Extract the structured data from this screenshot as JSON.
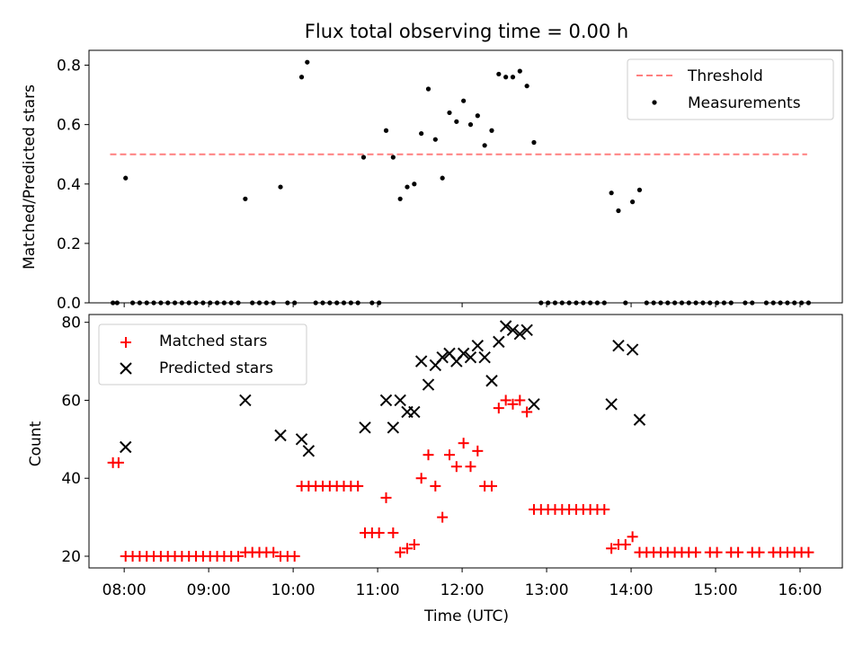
{
  "chart_data": {
    "title": "Flux total observing time = 0.00 h",
    "xlabel": "Time (UTC)",
    "x_ticks": [
      "08:00",
      "09:00",
      "10:00",
      "11:00",
      "12:00",
      "13:00",
      "14:00",
      "15:00",
      "16:00"
    ],
    "x_range": [
      "07:35",
      "16:30"
    ],
    "panels": [
      {
        "type": "scatter",
        "ylabel": "Matched/Predicted stars",
        "ylim": [
          0,
          0.85
        ],
        "y_ticks": [
          "0.0",
          "0.2",
          "0.4",
          "0.6",
          "0.8"
        ],
        "threshold": {
          "name": "Threshold",
          "value": 0.5,
          "x_range": [
            "07:50",
            "16:05"
          ],
          "color": "#ff7f7f",
          "style": "dashed"
        },
        "legend": {
          "position": "upper right",
          "entries": [
            "Threshold",
            "Measurements"
          ]
        },
        "series": [
          {
            "name": "Measurements",
            "color": "#000000",
            "marker": "dot",
            "points": [
              [
                "07:52",
                0
              ],
              [
                "07:55",
                0
              ],
              [
                "08:01",
                0.42
              ],
              [
                "08:06",
                0
              ],
              [
                "08:11",
                0
              ],
              [
                "08:16",
                0
              ],
              [
                "08:21",
                0
              ],
              [
                "08:26",
                0
              ],
              [
                "08:31",
                0
              ],
              [
                "08:36",
                0
              ],
              [
                "08:41",
                0
              ],
              [
                "08:46",
                0
              ],
              [
                "08:51",
                0
              ],
              [
                "08:56",
                0
              ],
              [
                "09:01",
                0
              ],
              [
                "09:06",
                0
              ],
              [
                "09:11",
                0
              ],
              [
                "09:16",
                0
              ],
              [
                "09:21",
                0
              ],
              [
                "09:26",
                0.35
              ],
              [
                "09:31",
                0
              ],
              [
                "09:36",
                0
              ],
              [
                "09:41",
                0
              ],
              [
                "09:46",
                0
              ],
              [
                "09:51",
                0.39
              ],
              [
                "09:56",
                0
              ],
              [
                "10:01",
                0
              ],
              [
                "10:06",
                0.76
              ],
              [
                "10:10",
                0.81
              ],
              [
                "10:16",
                0
              ],
              [
                "10:21",
                0
              ],
              [
                "10:26",
                0
              ],
              [
                "10:31",
                0
              ],
              [
                "10:36",
                0
              ],
              [
                "10:41",
                0
              ],
              [
                "10:46",
                0
              ],
              [
                "10:50",
                0.49
              ],
              [
                "10:56",
                0
              ],
              [
                "11:01",
                0
              ],
              [
                "11:06",
                0.58
              ],
              [
                "11:11",
                0.49
              ],
              [
                "11:16",
                0.35
              ],
              [
                "11:21",
                0.39
              ],
              [
                "11:26",
                0.4
              ],
              [
                "11:31",
                0.57
              ],
              [
                "11:36",
                0.72
              ],
              [
                "11:41",
                0.55
              ],
              [
                "11:46",
                0.42
              ],
              [
                "11:51",
                0.64
              ],
              [
                "11:56",
                0.61
              ],
              [
                "12:01",
                0.68
              ],
              [
                "12:06",
                0.6
              ],
              [
                "12:11",
                0.63
              ],
              [
                "12:16",
                0.53
              ],
              [
                "12:21",
                0.58
              ],
              [
                "12:26",
                0.77
              ],
              [
                "12:31",
                0.76
              ],
              [
                "12:36",
                0.76
              ],
              [
                "12:41",
                0.78
              ],
              [
                "12:46",
                0.73
              ],
              [
                "12:51",
                0.54
              ],
              [
                "12:56",
                0
              ],
              [
                "13:01",
                0
              ],
              [
                "13:06",
                0
              ],
              [
                "13:11",
                0
              ],
              [
                "13:16",
                0
              ],
              [
                "13:21",
                0
              ],
              [
                "13:26",
                0
              ],
              [
                "13:31",
                0
              ],
              [
                "13:36",
                0
              ],
              [
                "13:41",
                0
              ],
              [
                "13:46",
                0.37
              ],
              [
                "13:51",
                0.31
              ],
              [
                "13:56",
                0
              ],
              [
                "14:01",
                0.34
              ],
              [
                "14:06",
                0.38
              ],
              [
                "14:11",
                0
              ],
              [
                "14:16",
                0
              ],
              [
                "14:21",
                0
              ],
              [
                "14:26",
                0
              ],
              [
                "14:31",
                0
              ],
              [
                "14:36",
                0
              ],
              [
                "14:41",
                0
              ],
              [
                "14:46",
                0
              ],
              [
                "14:51",
                0
              ],
              [
                "14:56",
                0
              ],
              [
                "15:01",
                0
              ],
              [
                "15:06",
                0
              ],
              [
                "15:11",
                0
              ],
              [
                "15:21",
                0
              ],
              [
                "15:26",
                0
              ],
              [
                "15:36",
                0
              ],
              [
                "15:41",
                0
              ],
              [
                "15:46",
                0
              ],
              [
                "15:51",
                0
              ],
              [
                "15:56",
                0
              ],
              [
                "16:01",
                0
              ],
              [
                "16:06",
                0
              ]
            ]
          }
        ]
      },
      {
        "type": "scatter",
        "ylabel": "Count",
        "ylim": [
          17,
          82
        ],
        "y_ticks": [
          "20",
          "40",
          "60",
          "80"
        ],
        "legend": {
          "position": "upper left",
          "entries": [
            "Matched stars",
            "Predicted stars"
          ]
        },
        "series": [
          {
            "name": "Matched stars",
            "color": "#ff0000",
            "marker": "plus",
            "points": [
              [
                "07:52",
                44
              ],
              [
                "07:56",
                44
              ],
              [
                "08:01",
                20
              ],
              [
                "08:06",
                20
              ],
              [
                "08:11",
                20
              ],
              [
                "08:16",
                20
              ],
              [
                "08:21",
                20
              ],
              [
                "08:26",
                20
              ],
              [
                "08:31",
                20
              ],
              [
                "08:36",
                20
              ],
              [
                "08:41",
                20
              ],
              [
                "08:46",
                20
              ],
              [
                "08:51",
                20
              ],
              [
                "08:56",
                20
              ],
              [
                "09:01",
                20
              ],
              [
                "09:06",
                20
              ],
              [
                "09:11",
                20
              ],
              [
                "09:16",
                20
              ],
              [
                "09:21",
                20
              ],
              [
                "09:26",
                21
              ],
              [
                "09:31",
                21
              ],
              [
                "09:36",
                21
              ],
              [
                "09:41",
                21
              ],
              [
                "09:46",
                21
              ],
              [
                "09:51",
                20
              ],
              [
                "09:56",
                20
              ],
              [
                "10:01",
                20
              ],
              [
                "10:06",
                38
              ],
              [
                "10:11",
                38
              ],
              [
                "10:16",
                38
              ],
              [
                "10:21",
                38
              ],
              [
                "10:26",
                38
              ],
              [
                "10:31",
                38
              ],
              [
                "10:36",
                38
              ],
              [
                "10:41",
                38
              ],
              [
                "10:46",
                38
              ],
              [
                "10:51",
                26
              ],
              [
                "10:56",
                26
              ],
              [
                "11:01",
                26
              ],
              [
                "11:06",
                35
              ],
              [
                "11:11",
                26
              ],
              [
                "11:16",
                21
              ],
              [
                "11:21",
                22
              ],
              [
                "11:26",
                23
              ],
              [
                "11:31",
                40
              ],
              [
                "11:36",
                46
              ],
              [
                "11:41",
                38
              ],
              [
                "11:46",
                30
              ],
              [
                "11:51",
                46
              ],
              [
                "11:56",
                43
              ],
              [
                "12:01",
                49
              ],
              [
                "12:06",
                43
              ],
              [
                "12:11",
                47
              ],
              [
                "12:16",
                38
              ],
              [
                "12:21",
                38
              ],
              [
                "12:26",
                58
              ],
              [
                "12:31",
                60
              ],
              [
                "12:36",
                59
              ],
              [
                "12:41",
                60
              ],
              [
                "12:46",
                57
              ],
              [
                "12:51",
                32
              ],
              [
                "12:56",
                32
              ],
              [
                "13:01",
                32
              ],
              [
                "13:06",
                32
              ],
              [
                "13:11",
                32
              ],
              [
                "13:16",
                32
              ],
              [
                "13:21",
                32
              ],
              [
                "13:26",
                32
              ],
              [
                "13:31",
                32
              ],
              [
                "13:36",
                32
              ],
              [
                "13:41",
                32
              ],
              [
                "13:46",
                22
              ],
              [
                "13:51",
                23
              ],
              [
                "13:56",
                23
              ],
              [
                "14:01",
                25
              ],
              [
                "14:06",
                21
              ],
              [
                "14:11",
                21
              ],
              [
                "14:16",
                21
              ],
              [
                "14:21",
                21
              ],
              [
                "14:26",
                21
              ],
              [
                "14:31",
                21
              ],
              [
                "14:36",
                21
              ],
              [
                "14:41",
                21
              ],
              [
                "14:46",
                21
              ],
              [
                "14:56",
                21
              ],
              [
                "15:01",
                21
              ],
              [
                "15:11",
                21
              ],
              [
                "15:16",
                21
              ],
              [
                "15:26",
                21
              ],
              [
                "15:31",
                21
              ],
              [
                "15:41",
                21
              ],
              [
                "15:46",
                21
              ],
              [
                "15:51",
                21
              ],
              [
                "15:56",
                21
              ],
              [
                "16:01",
                21
              ],
              [
                "16:06",
                21
              ]
            ]
          },
          {
            "name": "Predicted stars",
            "color": "#000000",
            "marker": "x",
            "points": [
              [
                "08:01",
                48
              ],
              [
                "09:26",
                60
              ],
              [
                "09:51",
                51
              ],
              [
                "10:06",
                50
              ],
              [
                "10:11",
                47
              ],
              [
                "10:51",
                53
              ],
              [
                "11:06",
                60
              ],
              [
                "11:11",
                53
              ],
              [
                "11:16",
                60
              ],
              [
                "11:21",
                57
              ],
              [
                "11:26",
                57
              ],
              [
                "11:31",
                70
              ],
              [
                "11:36",
                64
              ],
              [
                "11:41",
                69
              ],
              [
                "11:46",
                71
              ],
              [
                "11:51",
                72
              ],
              [
                "11:56",
                70
              ],
              [
                "12:01",
                72
              ],
              [
                "12:06",
                71
              ],
              [
                "12:11",
                74
              ],
              [
                "12:16",
                71
              ],
              [
                "12:21",
                65
              ],
              [
                "12:26",
                75
              ],
              [
                "12:31",
                79
              ],
              [
                "12:36",
                78
              ],
              [
                "12:41",
                77
              ],
              [
                "12:46",
                78
              ],
              [
                "12:51",
                59
              ],
              [
                "13:46",
                59
              ],
              [
                "13:51",
                74
              ],
              [
                "14:01",
                73
              ],
              [
                "14:06",
                55
              ]
            ]
          }
        ]
      }
    ]
  }
}
